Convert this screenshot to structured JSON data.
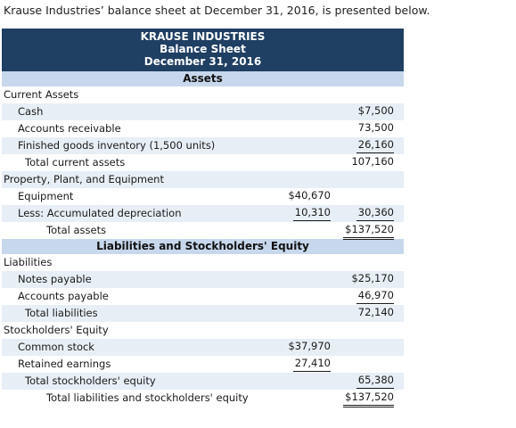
{
  "intro": "Krause Industries’ balance sheet at December 31, 2016, is presented below.",
  "header": {
    "company": "KRAUSE INDUSTRIES",
    "statement": "Balance Sheet",
    "date": "December 31, 2016"
  },
  "assets_title": "Assets",
  "liabilities_title": "Liabilities and Stockholders' Equity",
  "assets": [
    {
      "label": "Current Assets",
      "c1": "",
      "c2": ""
    },
    {
      "label": "Cash",
      "c1": "",
      "c2": "$7,500"
    },
    {
      "label": "Accounts receivable",
      "c1": "",
      "c2": "73,500"
    },
    {
      "label": "Finished goods inventory (1,500 units)",
      "c1": "",
      "c2": "26,160"
    },
    {
      "label": "Total current assets",
      "c1": "",
      "c2": "107,160"
    },
    {
      "label": "Property, Plant, and Equipment",
      "c1": "",
      "c2": ""
    },
    {
      "label": "Equipment",
      "c1": "$40,670",
      "c2": ""
    },
    {
      "label": "Less: Accumulated depreciation",
      "c1": "10,310",
      "c2": "30,360"
    },
    {
      "label": "Total assets",
      "c1": "",
      "c2": "$137,520"
    }
  ],
  "liabilities": [
    {
      "label": "Liabilities",
      "c1": "",
      "c2": ""
    },
    {
      "label": "Notes payable",
      "c1": "",
      "c2": "$25,170"
    },
    {
      "label": "Accounts payable",
      "c1": "",
      "c2": "46,970"
    },
    {
      "label": "Total liabilities",
      "c1": "",
      "c2": "72,140"
    },
    {
      "label": "Stockholders' Equity",
      "c1": "",
      "c2": ""
    },
    {
      "label": "Common stock",
      "c1": "$37,970",
      "c2": ""
    },
    {
      "label": "Retained earnings",
      "c1": "27,410",
      "c2": ""
    },
    {
      "label": "Total stockholders' equity",
      "c1": "",
      "c2": "65,380"
    },
    {
      "label": "Total liabilities and stockholders' equity",
      "c1": "",
      "c2": "$137,520"
    }
  ]
}
